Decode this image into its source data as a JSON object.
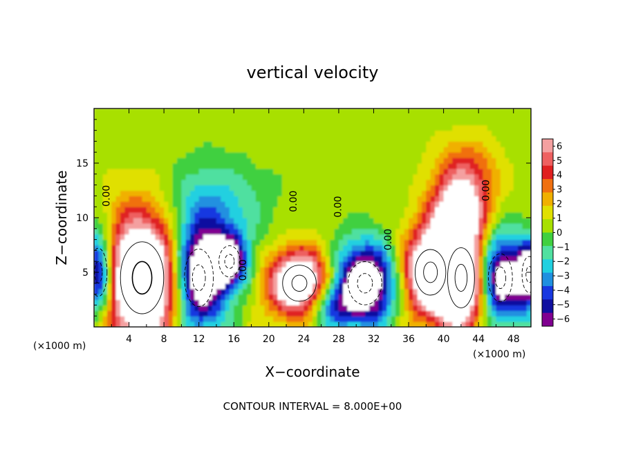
{
  "chart_data": {
    "type": "heatmap",
    "title": "vertical velocity",
    "xlabel": "X−coordinate",
    "ylabel": "Z−coordinate",
    "x_unit_left": "(×1000 m)",
    "x_unit_right": "(×1000 m)",
    "xlim": [
      0,
      50
    ],
    "ylim": [
      0,
      20
    ],
    "x_ticks": [
      4,
      8,
      12,
      16,
      20,
      24,
      28,
      32,
      36,
      40,
      44,
      48
    ],
    "y_ticks": [
      5,
      10,
      15
    ],
    "footer": "CONTOUR INTERVAL = 8.000E+00",
    "contour_label": "0.00",
    "colorbar": {
      "ticks": [
        "6",
        "5",
        "4",
        "3",
        "2",
        "1",
        "0",
        "−1",
        "−2",
        "−3",
        "−4",
        "−5",
        "−6"
      ],
      "colors": [
        "#f4a0a0",
        "#ee6060",
        "#e02020",
        "#f07010",
        "#f0b000",
        "#e0e000",
        "#a8e000",
        "#40d040",
        "#50e0a0",
        "#20d0e0",
        "#2090e0",
        "#1838e0",
        "#1010a0",
        "#800090"
      ]
    },
    "cells": [
      {
        "x": 5.5,
        "y": 4.5,
        "rx": 4.5,
        "ry": 6.0,
        "w": 8
      },
      {
        "x": 12.0,
        "y": 4.5,
        "rx": 3.0,
        "ry": 4.8,
        "w": -7
      },
      {
        "x": 15.5,
        "y": 6.0,
        "rx": 2.2,
        "ry": 2.6,
        "w": -5
      },
      {
        "x": 0.5,
        "y": 5.0,
        "rx": 1.8,
        "ry": 4.0,
        "w": -6
      },
      {
        "x": 23.5,
        "y": 4.0,
        "rx": 3.5,
        "ry": 3.0,
        "w": 7
      },
      {
        "x": 31.0,
        "y": 4.0,
        "rx": 3.5,
        "ry": 3.6,
        "w": -7
      },
      {
        "x": 38.5,
        "y": 5.0,
        "rx": 3.2,
        "ry": 3.8,
        "w": 7
      },
      {
        "x": 42.0,
        "y": 4.5,
        "rx": 2.8,
        "ry": 5.0,
        "w": 7
      },
      {
        "x": 41.5,
        "y": 10.0,
        "rx": 3.0,
        "ry": 3.0,
        "w": 4
      },
      {
        "x": 42.5,
        "y": 13.5,
        "rx": 3.5,
        "ry": 3.5,
        "w": 3
      },
      {
        "x": 46.5,
        "y": 4.5,
        "rx": 2.5,
        "ry": 4.0,
        "w": -6
      },
      {
        "x": 49.8,
        "y": 4.8,
        "rx": 1.5,
        "ry": 3.0,
        "w": -6
      },
      {
        "x": 13.5,
        "y": 11.0,
        "rx": 6.0,
        "ry": 4.0,
        "w": -2
      },
      {
        "x": 27.0,
        "y": 2.0,
        "rx": 3.0,
        "ry": 2.0,
        "w": -3
      }
    ]
  }
}
